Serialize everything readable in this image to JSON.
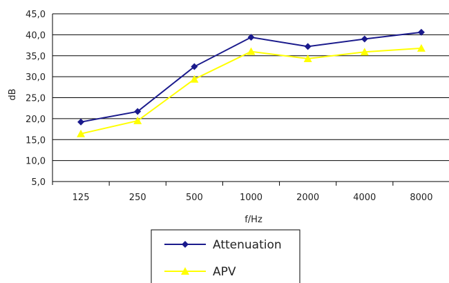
{
  "chart_data": {
    "type": "line",
    "title": "",
    "xlabel": "f/Hz",
    "ylabel": "dB",
    "categories": [
      "125",
      "250",
      "500",
      "1000",
      "2000",
      "4000",
      "8000"
    ],
    "yticks": [
      "5,0",
      "10,0",
      "15,0",
      "20,0",
      "25,0",
      "30,0",
      "35,0",
      "40,0",
      "45,0"
    ],
    "ylim": [
      5,
      45
    ],
    "grid": "horizontal",
    "legend_position": "bottom",
    "series": [
      {
        "name": "Attenuation",
        "color": "#1a1a8c",
        "marker": "diamond",
        "values": [
          19.2,
          21.7,
          32.4,
          39.4,
          37.2,
          39.0,
          40.6
        ]
      },
      {
        "name": "APV",
        "color": "#ffff00",
        "marker": "triangle",
        "values": [
          16.4,
          19.5,
          29.4,
          36.0,
          34.3,
          35.9,
          36.8
        ]
      }
    ]
  }
}
